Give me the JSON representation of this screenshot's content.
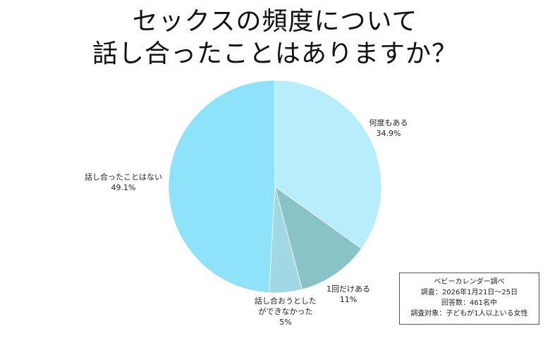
{
  "title": {
    "line1": "セックスの頻度について",
    "line2": "話し合ったことはありますか？"
  },
  "chart_data": {
    "type": "pie",
    "title": "セックスの頻度について話し合ったことはありますか？",
    "start_angle": "12 o'clock, clockwise",
    "slices": [
      {
        "label": "何度もある",
        "value": 34.9,
        "display": "34.9%",
        "color": "#B8EEFC"
      },
      {
        "label": "1回だけある",
        "value": 11,
        "display": "11%",
        "color": "#88C3C8"
      },
      {
        "label": "話し合おうとしたができなかった",
        "value": 5,
        "display": "5%",
        "color": "#A0D9E4"
      },
      {
        "label": "話し合ったことはない",
        "value": 49.1,
        "display": "49.1%",
        "color": "#8EE3FB"
      }
    ]
  },
  "labels": {
    "s0": {
      "name": "何度もある",
      "pct": "34.9%"
    },
    "s1": {
      "name": "1回だけある",
      "pct": "11%"
    },
    "s2": {
      "name_line1": "話し合おうとした",
      "name_line2": "ができなかった",
      "pct": "5%"
    },
    "s3": {
      "name": "話し合ったことはない",
      "pct": "49.1%"
    }
  },
  "source_box": {
    "line1": "ベビーカレンダー調べ",
    "line2": "調査：2026年1月21日〜25日",
    "line3": "回答数：461名中",
    "line4": "調査対象：子どもが1人以上いる女性"
  }
}
